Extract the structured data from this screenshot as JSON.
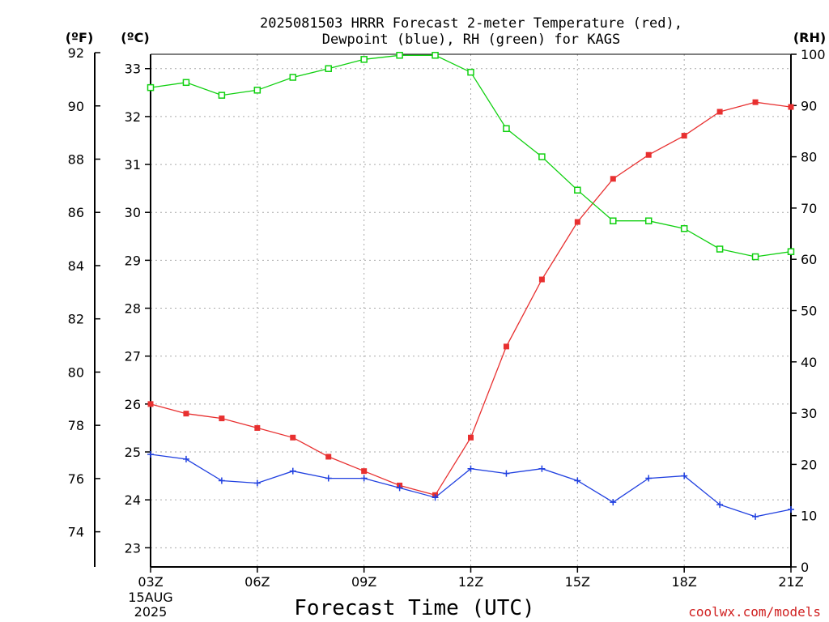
{
  "chart_data": {
    "type": "line",
    "title_lines": [
      "2025081503 HRRR Forecast 2-meter Temperature (red),",
      "Dewpoint (blue), RH (green) for KAGS"
    ],
    "xlabel": "Forecast Time (UTC)",
    "x": [
      "03Z",
      "04Z",
      "05Z",
      "06Z",
      "07Z",
      "08Z",
      "09Z",
      "10Z",
      "11Z",
      "12Z",
      "13Z",
      "14Z",
      "15Z",
      "16Z",
      "17Z",
      "18Z",
      "19Z",
      "20Z",
      "21Z"
    ],
    "x_tick_labels": [
      "03Z",
      "06Z",
      "09Z",
      "12Z",
      "15Z",
      "18Z",
      "21Z"
    ],
    "x_tick_indices": [
      0,
      3,
      6,
      9,
      12,
      15,
      18
    ],
    "date_labels": [
      "15AUG",
      "2025"
    ],
    "axes": {
      "fahrenheit": {
        "unit_label": "(ºF)",
        "ticks": [
          74,
          76,
          78,
          80,
          82,
          84,
          86,
          88,
          90,
          92
        ]
      },
      "celsius": {
        "unit_label": "(ºC)",
        "ticks": [
          23,
          24,
          25,
          26,
          27,
          28,
          29,
          30,
          31,
          32,
          33
        ],
        "range": [
          22.6,
          33.3
        ]
      },
      "rh": {
        "unit_label": "(RH)",
        "ticks": [
          0,
          10,
          20,
          30,
          40,
          50,
          60,
          70,
          80,
          90,
          100
        ],
        "range": [
          0,
          100
        ]
      }
    },
    "grid": true,
    "series": [
      {
        "name": "Temperature",
        "axis": "celsius",
        "color": "#e83030",
        "marker": "filled-square",
        "values": [
          26.0,
          25.8,
          25.7,
          25.5,
          25.3,
          24.9,
          24.6,
          24.3,
          24.1,
          25.3,
          27.2,
          28.6,
          29.8,
          30.7,
          31.2,
          31.6,
          32.1,
          32.3,
          32.2
        ]
      },
      {
        "name": "Dewpoint",
        "axis": "celsius",
        "color": "#2040e0",
        "marker": "plus",
        "values": [
          24.95,
          24.85,
          24.4,
          24.35,
          24.6,
          24.45,
          24.45,
          24.25,
          24.05,
          24.65,
          24.55,
          24.65,
          24.4,
          23.95,
          24.45,
          24.5,
          23.9,
          23.65,
          23.8
        ]
      },
      {
        "name": "RH",
        "axis": "rh",
        "color": "#10d010",
        "marker": "open-square",
        "values": [
          93.5,
          94.5,
          92.0,
          93.0,
          95.5,
          97.2,
          99.0,
          99.8,
          99.8,
          96.5,
          85.5,
          80.0,
          73.5,
          67.5,
          67.5,
          66.0,
          62.0,
          60.5,
          61.5
        ]
      }
    ]
  },
  "credit": "coolwx.com/models"
}
